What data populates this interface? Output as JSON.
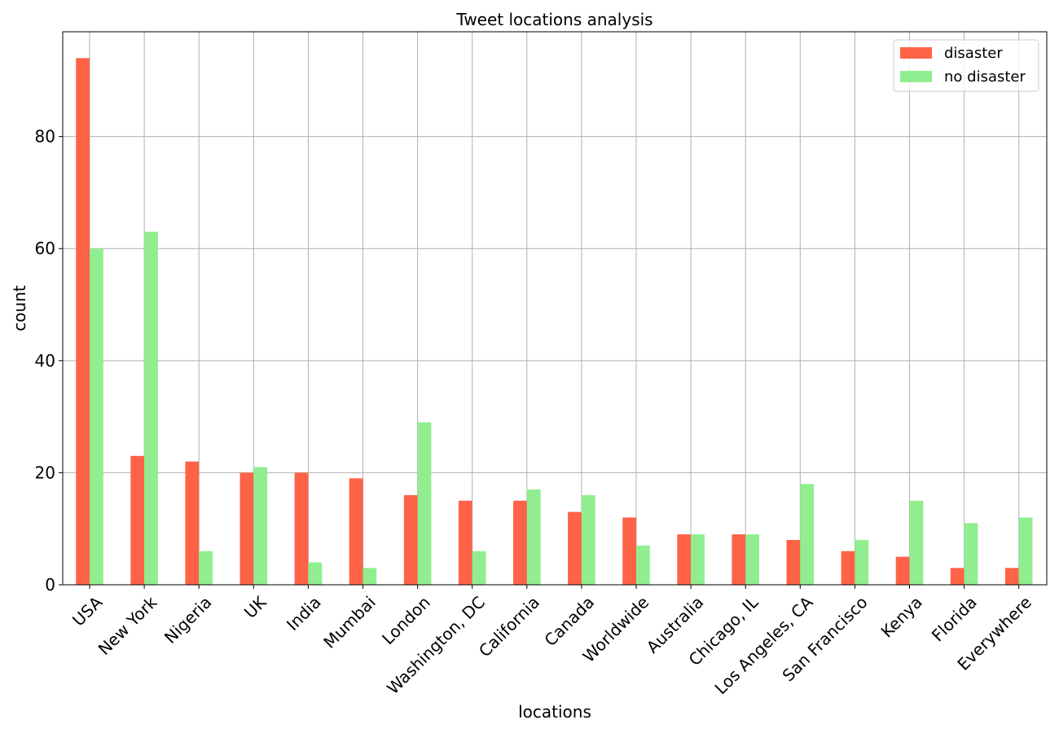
{
  "chart_data": {
    "type": "bar",
    "title": "Tweet locations analysis",
    "xlabel": "locations",
    "ylabel": "count",
    "categories": [
      "USA",
      "New York",
      "Nigeria",
      "UK",
      "India",
      "Mumbai",
      "London",
      "Washington, DC",
      "California",
      "Canada",
      "Worldwide",
      "Australia",
      "Chicago, IL",
      "Los Angeles, CA",
      "San Francisco",
      "Kenya",
      "Florida",
      "Everywhere"
    ],
    "series": [
      {
        "name": "disaster",
        "color": "#ff6347",
        "values": [
          94,
          23,
          22,
          20,
          20,
          19,
          16,
          15,
          15,
          13,
          12,
          9,
          9,
          8,
          6,
          5,
          3,
          3
        ]
      },
      {
        "name": "no disaster",
        "color": "#90ee90",
        "values": [
          60,
          63,
          6,
          21,
          4,
          3,
          29,
          6,
          17,
          16,
          7,
          9,
          9,
          18,
          8,
          15,
          11,
          12
        ]
      }
    ],
    "ylim": [
      0,
      98.7
    ],
    "yticks": [
      0,
      20,
      40,
      60,
      80
    ],
    "grid": true,
    "legend_position": "top-right"
  }
}
